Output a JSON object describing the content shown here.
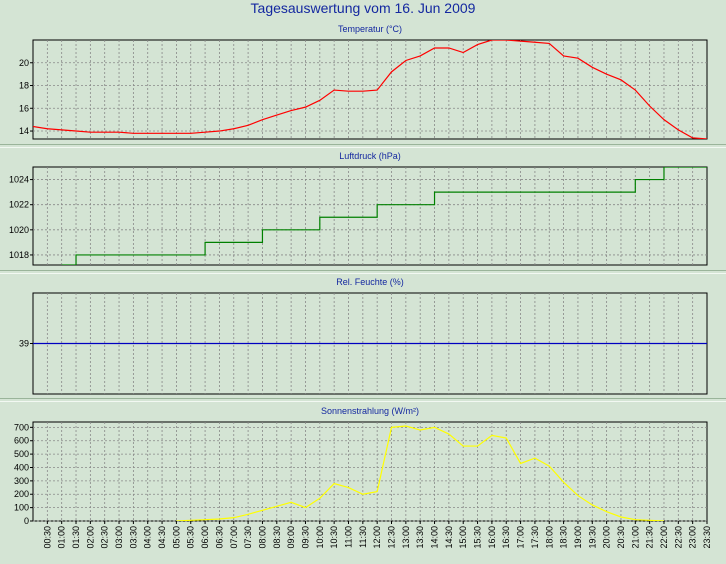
{
  "title": "Tagesauswertung vom 16. Jun 2009",
  "colors": {
    "background": "#d4e4d4",
    "grid": "#888888",
    "title_text": "#1428a0",
    "temperature": "#ff0000",
    "pressure": "#008000",
    "humidity": "#0000c0",
    "radiation": "#ffff00"
  },
  "x_ticks": [
    "00:30",
    "01:00",
    "01:30",
    "02:00",
    "02:30",
    "03:00",
    "03:30",
    "04:00",
    "04:30",
    "05:00",
    "05:30",
    "06:00",
    "06:30",
    "07:00",
    "07:30",
    "08:00",
    "08:30",
    "09:00",
    "09:30",
    "10:00",
    "10:30",
    "11:00",
    "11:30",
    "12:00",
    "12:30",
    "13:00",
    "13:30",
    "14:00",
    "14:30",
    "15:00",
    "15:30",
    "16:00",
    "16:30",
    "17:00",
    "17:30",
    "18:00",
    "18:30",
    "19:00",
    "19:30",
    "20:00",
    "20:30",
    "21:00",
    "21:30",
    "22:00",
    "22:30",
    "23:00",
    "23:30"
  ],
  "chart_data": [
    {
      "type": "line",
      "title": "Temperatur (°C)",
      "ylim": [
        13.3,
        22.0
      ],
      "yticks": [
        14,
        16,
        18,
        20
      ],
      "x_range": [
        "00:00",
        "23:30"
      ],
      "series": [
        {
          "x": [
            "00:00",
            "00:30",
            "01:00",
            "01:30",
            "02:00",
            "02:30",
            "03:00",
            "03:30",
            "04:00",
            "04:30",
            "05:00",
            "05:30",
            "06:00",
            "06:30",
            "07:00",
            "07:30",
            "08:00",
            "08:30",
            "09:00",
            "09:30",
            "10:00",
            "10:30",
            "11:00",
            "11:30",
            "12:00",
            "12:30",
            "13:00",
            "13:30",
            "14:00",
            "14:30",
            "15:00",
            "15:30",
            "16:00",
            "16:30",
            "17:00",
            "17:30",
            "18:00",
            "18:30",
            "19:00",
            "19:30",
            "20:00",
            "20:30",
            "21:00",
            "21:30",
            "22:00",
            "22:30",
            "23:00",
            "23:30"
          ],
          "values": [
            14.4,
            14.2,
            14.1,
            14.0,
            13.9,
            13.9,
            13.9,
            13.8,
            13.8,
            13.8,
            13.8,
            13.8,
            13.9,
            14.0,
            14.2,
            14.5,
            15.0,
            15.4,
            15.8,
            16.1,
            16.7,
            17.6,
            17.5,
            17.5,
            17.6,
            19.2,
            20.2,
            20.6,
            21.3,
            21.3,
            20.9,
            21.6,
            22.0,
            22.0,
            21.9,
            21.8,
            21.7,
            20.6,
            20.4,
            19.6,
            19.0,
            18.5,
            17.6,
            16.2,
            15.0,
            14.1,
            13.4,
            13.3
          ]
        }
      ]
    },
    {
      "type": "line",
      "title": "Luftdruck (hPa)",
      "ylim": [
        1017.2,
        1025.0
      ],
      "yticks": [
        1018,
        1020,
        1022,
        1024
      ],
      "x_range": [
        "00:00",
        "23:30"
      ],
      "step": true,
      "series": [
        {
          "x": [
            "01:00",
            "01:30",
            "05:30",
            "06:00",
            "07:30",
            "08:00",
            "09:30",
            "10:00",
            "11:30",
            "12:00",
            "13:30",
            "14:00",
            "20:30",
            "21:00",
            "22:00"
          ],
          "values": [
            1017.2,
            1018,
            1018,
            1019,
            1019,
            1020,
            1020,
            1021,
            1021,
            1022,
            1022,
            1023,
            1023,
            1024,
            1025
          ]
        }
      ]
    },
    {
      "type": "line",
      "title": "Rel. Feuchte (%)",
      "ylim": [
        38,
        40
      ],
      "yticks": [
        39
      ],
      "x_range": [
        "00:00",
        "23:30"
      ],
      "series": [
        {
          "x": [
            "00:00",
            "23:30"
          ],
          "values": [
            39,
            39
          ]
        }
      ]
    },
    {
      "type": "line",
      "title": "Sonnenstrahlung (W/m²)",
      "ylim": [
        0,
        740
      ],
      "yticks": [
        0,
        100,
        200,
        300,
        400,
        500,
        600,
        700
      ],
      "x_range": [
        "00:00",
        "23:30"
      ],
      "series": [
        {
          "x": [
            "05:00",
            "05:30",
            "06:00",
            "06:30",
            "07:00",
            "07:30",
            "08:00",
            "08:30",
            "09:00",
            "09:30",
            "10:00",
            "10:30",
            "11:00",
            "11:30",
            "12:00",
            "12:30",
            "13:00",
            "13:30",
            "14:00",
            "14:30",
            "15:00",
            "15:30",
            "16:00",
            "16:30",
            "17:00",
            "17:30",
            "18:00",
            "18:30",
            "19:00",
            "19:30",
            "20:00",
            "20:30",
            "21:00",
            "21:30",
            "22:00"
          ],
          "values": [
            0,
            5,
            10,
            15,
            25,
            50,
            80,
            110,
            140,
            100,
            170,
            280,
            250,
            200,
            220,
            700,
            710,
            680,
            700,
            650,
            560,
            560,
            640,
            620,
            430,
            470,
            410,
            290,
            190,
            120,
            70,
            30,
            10,
            5,
            0
          ]
        }
      ]
    }
  ]
}
